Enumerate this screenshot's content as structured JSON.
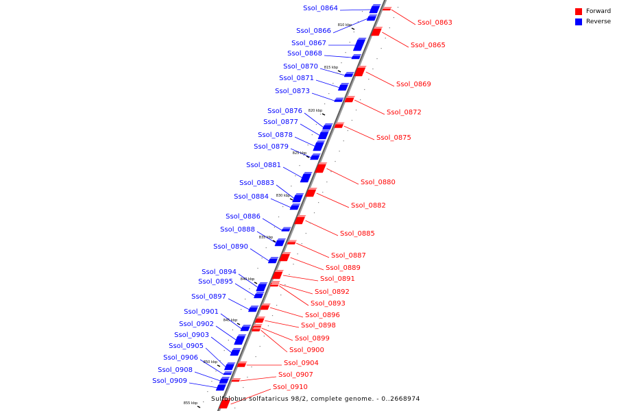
{
  "caption": "Sulfolobus solfataricus 98/2, complete genome. - 0..2668974",
  "legend": [
    {
      "label": "Forward",
      "color": "#ff0000"
    },
    {
      "label": "Reverse",
      "color": "#0000ff"
    }
  ],
  "colors": {
    "forward": "#ff0000",
    "reverse": "#0000ff",
    "backbone": "#777777",
    "leader_forward": "#ff0000",
    "leader_reverse": "#0000ff"
  },
  "ticks": [
    "810 kbp",
    "815 kbp",
    "820 kbp",
    "825 kbp",
    "830 kbp",
    "835 kbp",
    "840 kbp",
    "845 kbp",
    "850 kbp",
    "855 kbp"
  ],
  "genes": [
    {
      "name": "Ssol_0864",
      "strand": "reverse"
    },
    {
      "name": "Ssol_0863",
      "strand": "forward"
    },
    {
      "name": "Ssol_0865",
      "strand": "forward"
    },
    {
      "name": "Ssol_0866",
      "strand": "reverse"
    },
    {
      "name": "Ssol_0867",
      "strand": "reverse"
    },
    {
      "name": "Ssol_0868",
      "strand": "reverse"
    },
    {
      "name": "Ssol_0870",
      "strand": "reverse"
    },
    {
      "name": "Ssol_0869",
      "strand": "forward"
    },
    {
      "name": "Ssol_0871",
      "strand": "reverse"
    },
    {
      "name": "Ssol_0873",
      "strand": "reverse"
    },
    {
      "name": "Ssol_0872",
      "strand": "forward"
    },
    {
      "name": "Ssol_0876",
      "strand": "reverse"
    },
    {
      "name": "Ssol_0877",
      "strand": "reverse"
    },
    {
      "name": "Ssol_0875",
      "strand": "forward"
    },
    {
      "name": "Ssol_0878",
      "strand": "reverse"
    },
    {
      "name": "Ssol_0879",
      "strand": "reverse"
    },
    {
      "name": "Ssol_0881",
      "strand": "reverse"
    },
    {
      "name": "Ssol_0880",
      "strand": "forward"
    },
    {
      "name": "Ssol_0883",
      "strand": "reverse"
    },
    {
      "name": "Ssol_0884",
      "strand": "reverse"
    },
    {
      "name": "Ssol_0882",
      "strand": "forward"
    },
    {
      "name": "Ssol_0886",
      "strand": "reverse"
    },
    {
      "name": "Ssol_0888",
      "strand": "reverse"
    },
    {
      "name": "Ssol_0885",
      "strand": "forward"
    },
    {
      "name": "Ssol_0890",
      "strand": "reverse"
    },
    {
      "name": "Ssol_0887",
      "strand": "forward"
    },
    {
      "name": "Ssol_0889",
      "strand": "forward"
    },
    {
      "name": "Ssol_0894",
      "strand": "reverse"
    },
    {
      "name": "Ssol_0891",
      "strand": "forward"
    },
    {
      "name": "Ssol_0895",
      "strand": "reverse"
    },
    {
      "name": "Ssol_0892",
      "strand": "forward"
    },
    {
      "name": "Ssol_0897",
      "strand": "reverse"
    },
    {
      "name": "Ssol_0893",
      "strand": "forward"
    },
    {
      "name": "Ssol_0901",
      "strand": "reverse"
    },
    {
      "name": "Ssol_0896",
      "strand": "forward"
    },
    {
      "name": "Ssol_0902",
      "strand": "reverse"
    },
    {
      "name": "Ssol_0898",
      "strand": "forward"
    },
    {
      "name": "Ssol_0903",
      "strand": "reverse"
    },
    {
      "name": "Ssol_0899",
      "strand": "forward"
    },
    {
      "name": "Ssol_0905",
      "strand": "reverse"
    },
    {
      "name": "Ssol_0900",
      "strand": "forward"
    },
    {
      "name": "Ssol_0906",
      "strand": "reverse"
    },
    {
      "name": "Ssol_0904",
      "strand": "forward"
    },
    {
      "name": "Ssol_0908",
      "strand": "reverse"
    },
    {
      "name": "Ssol_0907",
      "strand": "forward"
    },
    {
      "name": "Ssol_0909",
      "strand": "reverse"
    },
    {
      "name": "Ssol_0910",
      "strand": "forward"
    }
  ]
}
